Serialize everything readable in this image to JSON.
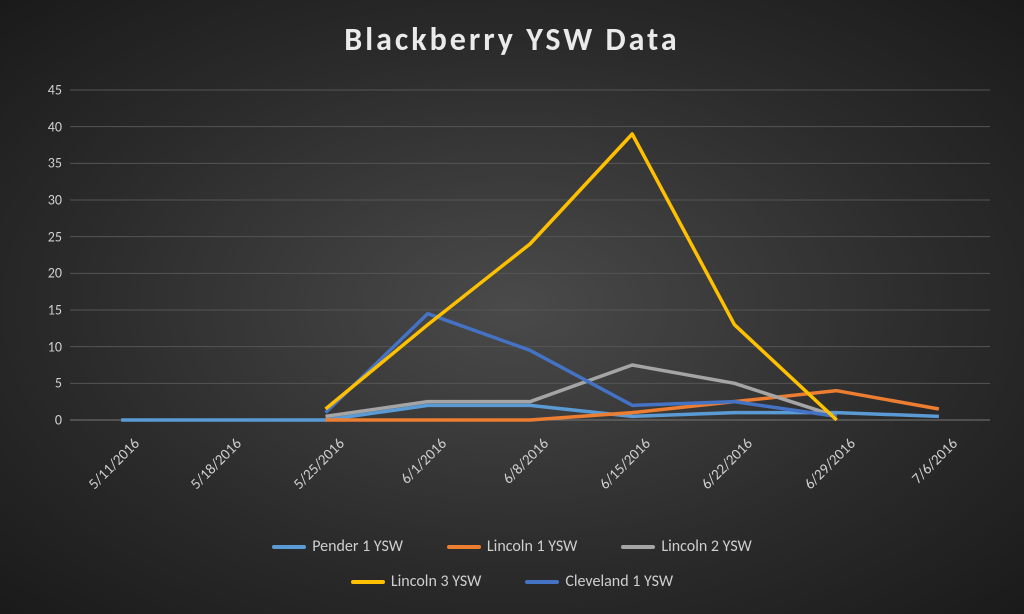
{
  "chart": {
    "type": "line",
    "title": "Blackberry YSW Data",
    "title_fontsize": 32,
    "title_color": "#eaeaea",
    "background": "radial-gradient #4a4a4a to #1a1a1a",
    "grid_color": "#555555",
    "axis_label_color": "#cfcfcf",
    "axis_label_fontsize": 14,
    "x_categories": [
      "5/11/2016",
      "5/18/2016",
      "5/25/2016",
      "6/1/2016",
      "6/8/2016",
      "6/15/2016",
      "6/22/2016",
      "6/29/2016",
      "7/6/2016"
    ],
    "y_min": 0,
    "y_max": 45,
    "y_tick_step": 5,
    "y_ticks": [
      0,
      5,
      10,
      15,
      20,
      25,
      30,
      35,
      40,
      45
    ],
    "line_width": 3.5,
    "series": [
      {
        "name": "Pender 1 YSW",
        "color": "#5b9bd5",
        "values": [
          0,
          0,
          0,
          2,
          2,
          0.5,
          1,
          1,
          0.5
        ]
      },
      {
        "name": "Lincoln 1 YSW",
        "color": "#ed7d31",
        "values": [
          null,
          null,
          0,
          0,
          0,
          1,
          2.5,
          4,
          1.5
        ]
      },
      {
        "name": "Lincoln 2 YSW",
        "color": "#a5a5a5",
        "values": [
          null,
          null,
          0.5,
          2.5,
          2.5,
          7.5,
          5,
          0.5,
          null
        ]
      },
      {
        "name": "Lincoln 3 YSW",
        "color": "#ffc000",
        "values": [
          null,
          null,
          1.5,
          13,
          24,
          39,
          13,
          0,
          null
        ]
      },
      {
        "name": "Cleveland 1 YSW",
        "color": "#4472c4",
        "values": [
          null,
          null,
          1,
          14.5,
          9.5,
          2,
          2.5,
          0.5,
          null
        ]
      }
    ],
    "legend_position": "bottom",
    "legend_fontsize": 16,
    "x_label_rotation_deg": -45
  }
}
